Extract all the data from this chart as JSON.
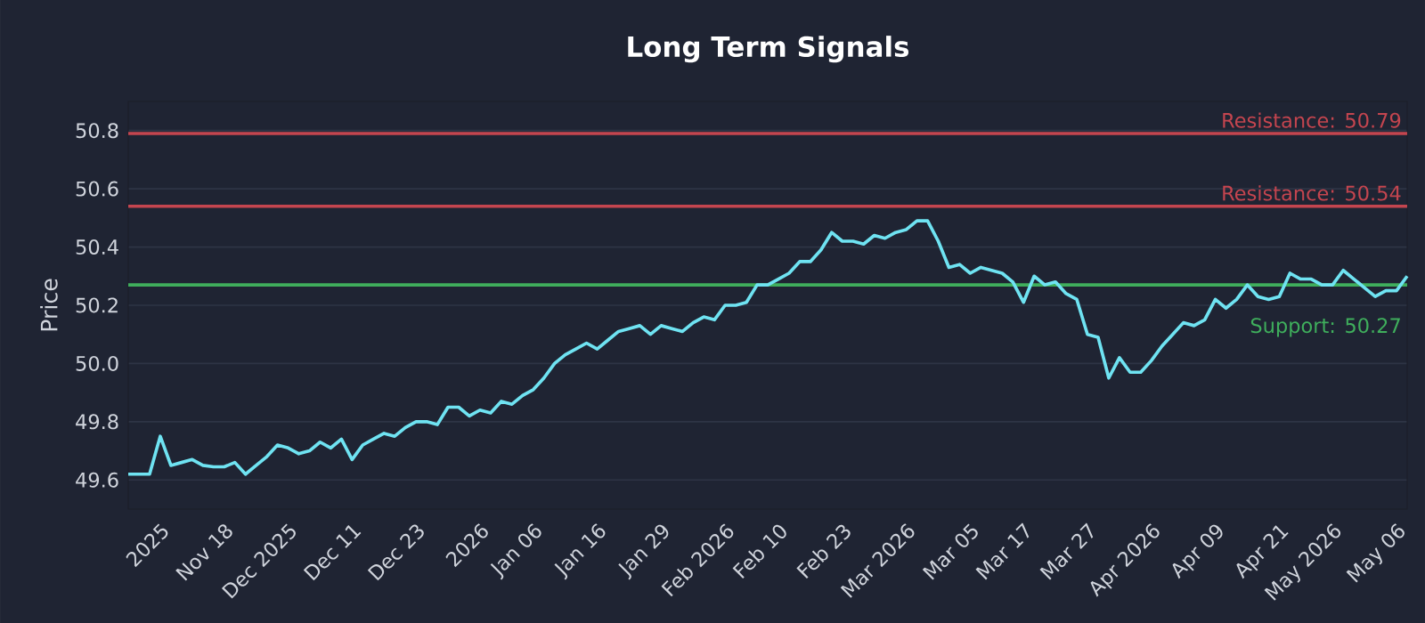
{
  "chart_data": {
    "type": "line",
    "title": "Long Term Signals",
    "ylabel": "Price",
    "categories": [
      null,
      null,
      null,
      "2025",
      null,
      null,
      null,
      null,
      null,
      "Nov 18",
      null,
      null,
      null,
      null,
      null,
      "Dec 2025",
      null,
      null,
      null,
      null,
      null,
      "Dec 11",
      null,
      null,
      null,
      null,
      null,
      "Dec 23",
      null,
      null,
      null,
      null,
      null,
      "2026",
      null,
      null,
      null,
      null,
      "Jan 06",
      null,
      null,
      null,
      null,
      null,
      "Jan 16",
      null,
      null,
      null,
      null,
      null,
      "Jan 29",
      null,
      null,
      null,
      null,
      null,
      "Feb 2026",
      null,
      null,
      null,
      null,
      "Feb 10",
      null,
      null,
      null,
      null,
      null,
      "Feb 23",
      null,
      null,
      null,
      null,
      null,
      "Mar 2026",
      null,
      null,
      null,
      null,
      null,
      "Mar 05",
      null,
      null,
      null,
      null,
      "Mar 17",
      null,
      null,
      null,
      null,
      null,
      "Mar 27",
      null,
      null,
      null,
      null,
      null,
      "Apr 2026",
      null,
      null,
      null,
      null,
      null,
      "Apr 09",
      null,
      null,
      null,
      null,
      null,
      "Apr 21",
      null,
      null,
      null,
      null,
      "May 2026",
      null,
      null,
      null,
      null,
      null,
      "May 06",
      null
    ],
    "series": [
      {
        "color": "#6fe3f2",
        "values": [
          49.62,
          49.62,
          49.62,
          49.75,
          49.65,
          49.66,
          49.67,
          49.65,
          49.645,
          49.645,
          49.66,
          49.62,
          49.65,
          49.68,
          49.72,
          49.71,
          49.69,
          49.7,
          49.73,
          49.71,
          49.74,
          49.67,
          49.72,
          49.74,
          49.76,
          49.75,
          49.78,
          49.8,
          49.8,
          49.79,
          49.85,
          49.85,
          49.82,
          49.84,
          49.83,
          49.87,
          49.86,
          49.89,
          49.91,
          49.95,
          50.0,
          50.03,
          50.05,
          50.07,
          50.05,
          50.08,
          50.11,
          50.12,
          50.13,
          50.1,
          50.13,
          50.12,
          50.11,
          50.14,
          50.16,
          50.15,
          50.2,
          50.2,
          50.21,
          50.27,
          50.27,
          50.29,
          50.31,
          50.35,
          50.35,
          50.39,
          50.45,
          50.42,
          50.42,
          50.41,
          50.44,
          50.43,
          50.45,
          50.46,
          50.49,
          50.49,
          50.42,
          50.33,
          50.34,
          50.31,
          50.33,
          50.32,
          50.31,
          50.28,
          50.21,
          50.3,
          50.27,
          50.28,
          50.24,
          50.22,
          50.1,
          50.09,
          49.95,
          50.02,
          49.97,
          49.97,
          50.01,
          50.06,
          50.1,
          50.14,
          50.13,
          50.15,
          50.22,
          50.19,
          50.22,
          50.27,
          50.23,
          50.22,
          50.23,
          50.31,
          50.29,
          50.29,
          50.27,
          50.27,
          50.32,
          50.29,
          50.26,
          50.23,
          50.25,
          50.25,
          50.3
        ]
      }
    ],
    "ylim": [
      49.5,
      50.9
    ],
    "yticks": [
      49.6,
      49.8,
      {
        "value": 50,
        "label": "50.0"
      },
      50.2,
      50.4,
      50.6,
      50.8
    ],
    "grid": "y",
    "marker": "none",
    "line_style": "solid",
    "ref_lines": [
      {
        "axis": "y",
        "value": 50.79,
        "label": "Resistance: 50.79",
        "color": "#c4454f"
      },
      {
        "axis": "y",
        "value": 50.54,
        "label": "Resistance: 50.54",
        "color": "#c4454f"
      },
      {
        "axis": "y",
        "value": 50.27,
        "label": "Support: 50.27",
        "color": "#3fae5c"
      }
    ]
  }
}
